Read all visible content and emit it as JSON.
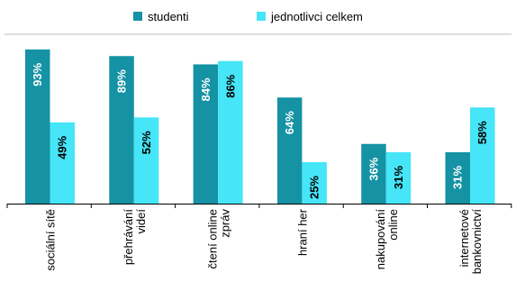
{
  "chart_data": {
    "type": "bar",
    "categories": [
      [
        "sociální sítě"
      ],
      [
        "přehrávání",
        "videí"
      ],
      [
        "čtení online",
        "zpráv"
      ],
      [
        "hraní her"
      ],
      [
        "nakupování",
        "online"
      ],
      [
        "internetové",
        "bankovnictví"
      ]
    ],
    "series": [
      {
        "name": "studenti",
        "color": "#1592a4",
        "values": [
          93,
          89,
          84,
          64,
          36,
          31
        ],
        "labels": [
          "93%",
          "89%",
          "84%",
          "64%",
          "36%",
          "31%"
        ]
      },
      {
        "name": "jednotlivci celkem",
        "color": "#46e5f7",
        "values": [
          49,
          52,
          86,
          25,
          31,
          58
        ],
        "labels": [
          "49%",
          "52%",
          "86%",
          "25%",
          "31%",
          "58%"
        ]
      }
    ],
    "ylim": [
      0,
      100
    ],
    "legend_position": "top",
    "grid": false
  }
}
